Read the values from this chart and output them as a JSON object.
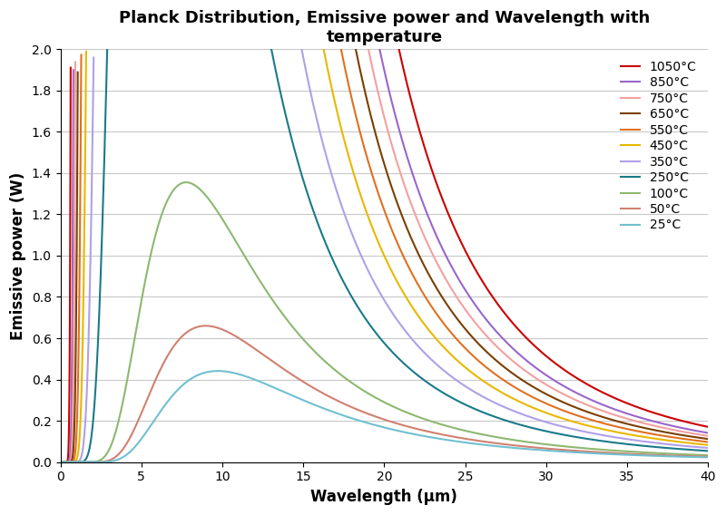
{
  "title": "Planck Distribution, Emissive power and Wavelength with\ntemperature",
  "xlabel": "Wavelength (μm)",
  "ylabel": "Emissive power (W)",
  "xlim": [
    0,
    40
  ],
  "ylim": [
    0,
    2
  ],
  "temperatures": [
    1050,
    850,
    750,
    650,
    550,
    450,
    350,
    250,
    100,
    50,
    25
  ],
  "labels": [
    "1050°C",
    "850°C",
    "750°C",
    "650°C",
    "550°C",
    "450°C",
    "350°C",
    "250°C",
    "100°C",
    "50°C",
    "25°C"
  ],
  "colors": [
    "#cc0000",
    "#9966cc",
    "#f4a0a0",
    "#7b3f00",
    "#e07020",
    "#e8b800",
    "#b0a0e8",
    "#1a7a8a",
    "#8db870",
    "#d08070",
    "#70c0d0"
  ],
  "background_color": "#ffffff",
  "grid_color": "#c8c8c8",
  "title_fontsize": 13,
  "label_fontsize": 12,
  "legend_fontsize": 10,
  "wavelength_max": 40,
  "wavelength_points": 5000,
  "clip_max": 2.0
}
